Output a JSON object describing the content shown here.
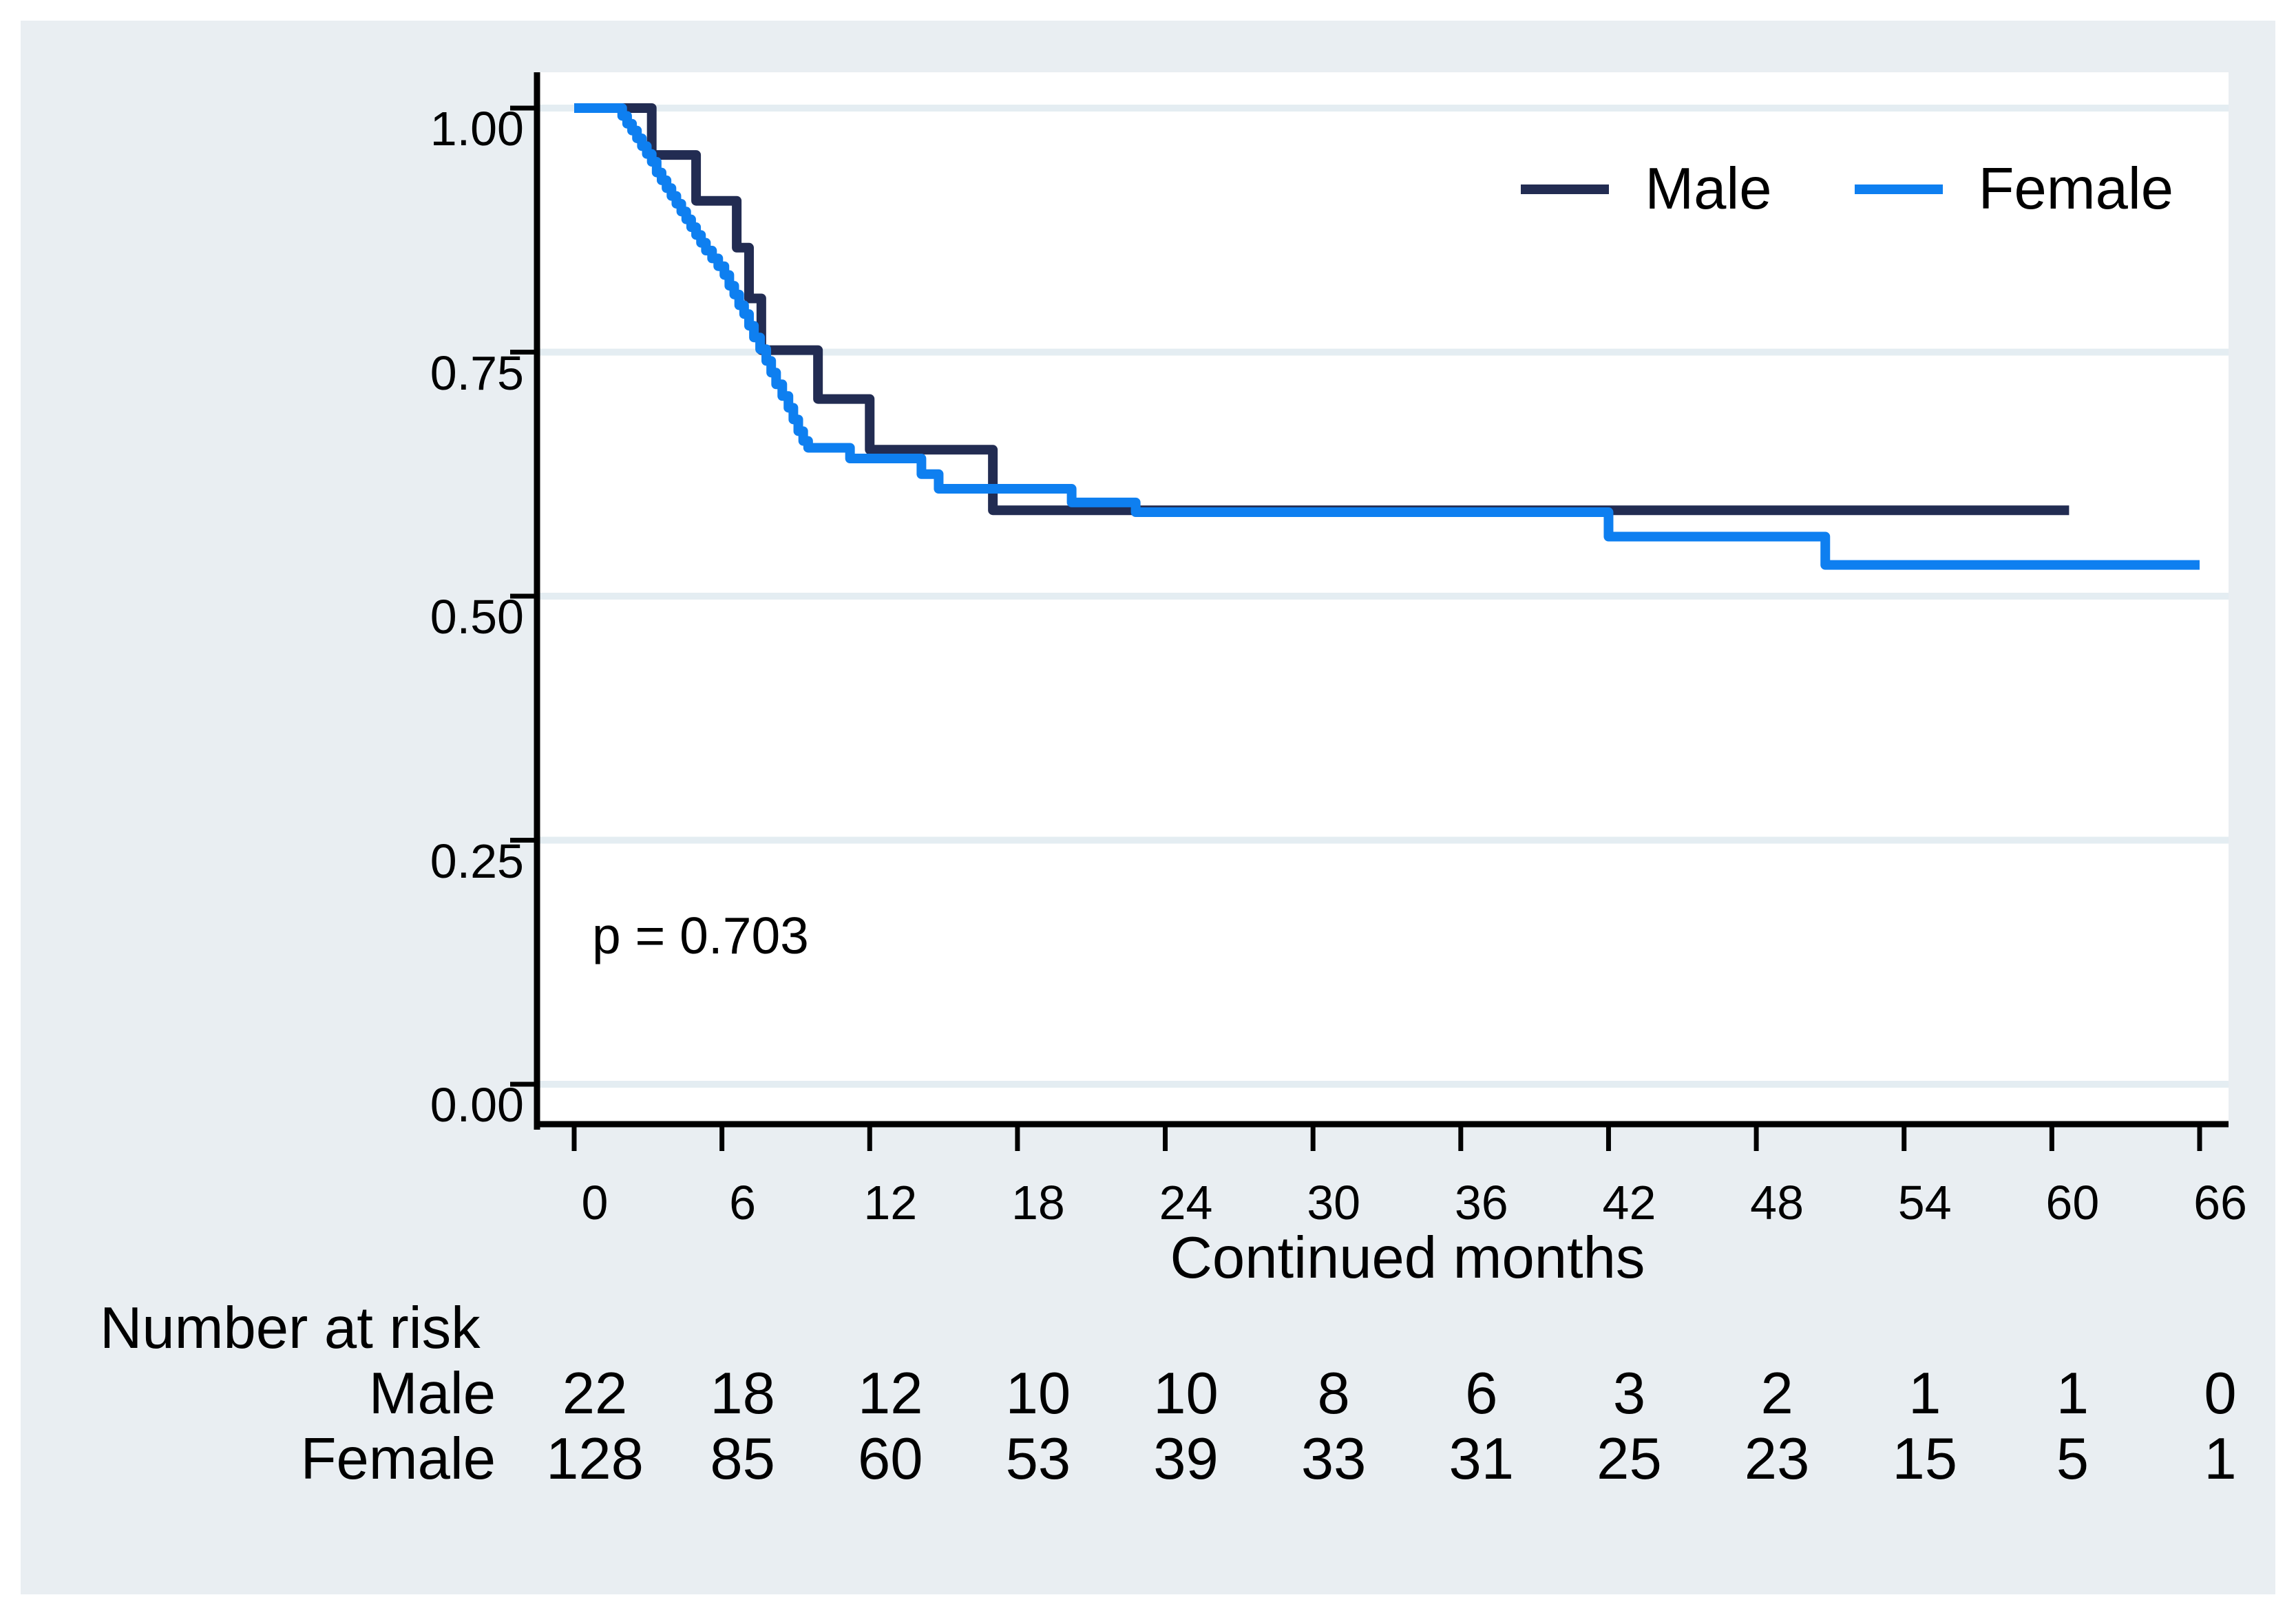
{
  "colors": {
    "male": "#222c52",
    "female": "#0e7ff0",
    "panel_background": "#e9eef2",
    "plot_background": "#ffffff",
    "gridline": "#e4edf2",
    "axis": "#000000"
  },
  "chart_data": {
    "type": "line",
    "subtype": "kaplan-meier-step",
    "title": "",
    "xlabel": "Continued months",
    "ylabel": "",
    "xlim": [
      0,
      66
    ],
    "ylim": [
      0.0,
      1.0
    ],
    "x_ticks": [
      0,
      6,
      12,
      18,
      24,
      30,
      36,
      42,
      48,
      54,
      60,
      66
    ],
    "y_tick_labels": [
      "0.00",
      "0.25",
      "0.50",
      "0.75",
      "1.00"
    ],
    "grid": "horizontal",
    "legend_position": "top-right-inside",
    "p_value_annotation": "p = 0.703",
    "series": [
      {
        "name": "Male",
        "end_t": 60.7,
        "steps": [
          [
            0,
            1.0
          ],
          [
            3.15,
            0.952
          ],
          [
            4.95,
            0.905
          ],
          [
            6.6,
            0.857
          ],
          [
            7.1,
            0.805
          ],
          [
            7.6,
            0.752
          ],
          [
            9.9,
            0.702
          ],
          [
            12.0,
            0.65
          ],
          [
            17.0,
            0.588
          ]
        ]
      },
      {
        "name": "Female",
        "end_t": 66,
        "steps": [
          [
            0,
            1.0
          ],
          [
            1.95,
            0.992
          ],
          [
            2.15,
            0.984
          ],
          [
            2.35,
            0.977
          ],
          [
            2.55,
            0.969
          ],
          [
            2.75,
            0.961
          ],
          [
            2.95,
            0.953
          ],
          [
            3.15,
            0.945
          ],
          [
            3.35,
            0.934
          ],
          [
            3.55,
            0.926
          ],
          [
            3.75,
            0.918
          ],
          [
            3.95,
            0.91
          ],
          [
            4.15,
            0.902
          ],
          [
            4.35,
            0.894
          ],
          [
            4.55,
            0.886
          ],
          [
            4.75,
            0.878
          ],
          [
            4.95,
            0.87
          ],
          [
            5.15,
            0.862
          ],
          [
            5.35,
            0.854
          ],
          [
            5.6,
            0.846
          ],
          [
            5.85,
            0.838
          ],
          [
            6.1,
            0.829
          ],
          [
            6.3,
            0.818
          ],
          [
            6.5,
            0.809
          ],
          [
            6.7,
            0.798
          ],
          [
            6.9,
            0.789
          ],
          [
            7.1,
            0.777
          ],
          [
            7.3,
            0.765
          ],
          [
            7.55,
            0.753
          ],
          [
            7.8,
            0.741
          ],
          [
            8.0,
            0.729
          ],
          [
            8.2,
            0.717
          ],
          [
            8.45,
            0.705
          ],
          [
            8.7,
            0.693
          ],
          [
            8.9,
            0.681
          ],
          [
            9.1,
            0.669
          ],
          [
            9.3,
            0.659
          ],
          [
            9.5,
            0.652
          ],
          [
            11.2,
            0.641
          ],
          [
            14.1,
            0.625
          ],
          [
            14.8,
            0.61
          ],
          [
            20.2,
            0.596
          ],
          [
            22.8,
            0.586
          ],
          [
            42.0,
            0.561
          ],
          [
            50.8,
            0.532
          ]
        ]
      }
    ],
    "risk_table": {
      "title": "Number at risk",
      "columns": [
        0,
        6,
        12,
        18,
        24,
        30,
        36,
        42,
        48,
        54,
        60,
        66
      ],
      "rows": [
        {
          "label": "Male",
          "values": [
            22,
            18,
            12,
            10,
            10,
            8,
            6,
            3,
            2,
            1,
            1,
            0
          ]
        },
        {
          "label": "Female",
          "values": [
            128,
            85,
            60,
            53,
            39,
            33,
            31,
            25,
            23,
            15,
            5,
            1
          ]
        }
      ]
    }
  }
}
